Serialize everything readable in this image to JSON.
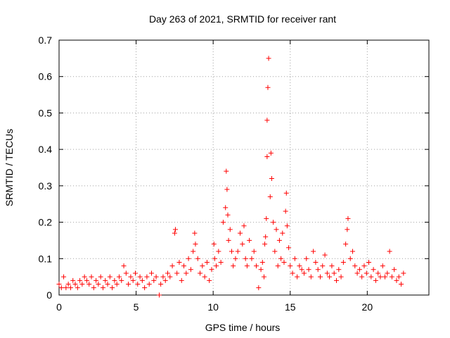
{
  "chart_data": {
    "type": "scatter",
    "title": "Day 263 of 2021, SRMTID for receiver rant",
    "xlabel": "GPS time / hours",
    "ylabel": "SRMTID / TECUs",
    "xlim": [
      0,
      24
    ],
    "ylim": [
      0,
      0.7
    ],
    "xticks": [
      0,
      5,
      10,
      15,
      20
    ],
    "xtick_labels": [
      "0",
      "5",
      "10",
      "15",
      "20"
    ],
    "yticks": [
      0,
      0.1,
      0.2,
      0.3,
      0.4,
      0.5,
      0.6,
      0.7
    ],
    "ytick_labels": [
      "0",
      "0.1",
      "0.2",
      "0.3",
      "0.4",
      "0.5",
      "0.6",
      "0.7"
    ],
    "grid": true,
    "marker": "+",
    "color": "#ff0000",
    "series": [
      {
        "name": "SRMTID",
        "x": [
          0.0,
          0.15,
          0.3,
          0.45,
          0.6,
          0.75,
          0.9,
          1.05,
          1.2,
          1.35,
          1.5,
          1.65,
          1.8,
          1.95,
          2.1,
          2.25,
          2.4,
          2.55,
          2.7,
          2.85,
          3.0,
          3.15,
          3.3,
          3.45,
          3.6,
          3.75,
          3.9,
          4.05,
          4.2,
          4.35,
          4.5,
          4.65,
          4.8,
          4.95,
          5.1,
          5.25,
          5.4,
          5.55,
          5.7,
          5.85,
          6.0,
          6.15,
          6.3,
          6.5,
          6.6,
          6.75,
          6.9,
          7.05,
          7.2,
          7.35,
          7.5,
          7.55,
          7.65,
          7.8,
          7.95,
          8.1,
          8.25,
          8.4,
          8.55,
          8.7,
          8.8,
          8.85,
          9.0,
          9.15,
          9.3,
          9.45,
          9.6,
          9.75,
          9.9,
          10.05,
          10.1,
          10.2,
          10.35,
          10.5,
          10.65,
          10.8,
          10.85,
          10.9,
          10.95,
          11.0,
          11.1,
          11.2,
          11.3,
          11.45,
          11.6,
          11.75,
          11.9,
          12.0,
          12.1,
          12.2,
          12.35,
          12.5,
          12.65,
          12.8,
          12.95,
          13.1,
          13.2,
          13.3,
          13.35,
          13.4,
          13.45,
          13.5,
          13.5,
          13.55,
          13.6,
          13.7,
          13.75,
          13.8,
          13.9,
          14.0,
          14.1,
          14.2,
          14.3,
          14.4,
          14.5,
          14.6,
          14.7,
          14.75,
          14.8,
          14.9,
          15.0,
          15.15,
          15.3,
          15.45,
          15.6,
          15.75,
          15.9,
          16.05,
          16.2,
          16.35,
          16.5,
          16.65,
          16.8,
          16.95,
          17.1,
          17.25,
          17.4,
          17.55,
          17.7,
          17.85,
          18.0,
          18.15,
          18.3,
          18.45,
          18.6,
          18.7,
          18.75,
          18.9,
          19.05,
          19.2,
          19.35,
          19.5,
          19.65,
          19.8,
          19.95,
          20.1,
          20.25,
          20.4,
          20.55,
          20.7,
          20.85,
          21.0,
          21.15,
          21.3,
          21.45,
          21.6,
          21.75,
          21.9,
          22.05,
          22.2,
          22.35
        ],
        "y": [
          0.03,
          0.02,
          0.05,
          0.02,
          0.03,
          0.02,
          0.04,
          0.03,
          0.02,
          0.04,
          0.03,
          0.05,
          0.04,
          0.03,
          0.05,
          0.02,
          0.04,
          0.03,
          0.05,
          0.02,
          0.04,
          0.03,
          0.05,
          0.02,
          0.04,
          0.03,
          0.05,
          0.04,
          0.08,
          0.06,
          0.03,
          0.05,
          0.04,
          0.06,
          0.03,
          0.05,
          0.04,
          0.02,
          0.05,
          0.03,
          0.06,
          0.04,
          0.05,
          0.0,
          0.03,
          0.05,
          0.04,
          0.06,
          0.05,
          0.08,
          0.17,
          0.18,
          0.06,
          0.09,
          0.04,
          0.08,
          0.06,
          0.1,
          0.07,
          0.12,
          0.17,
          0.14,
          0.1,
          0.06,
          0.08,
          0.05,
          0.09,
          0.04,
          0.07,
          0.14,
          0.1,
          0.08,
          0.12,
          0.09,
          0.2,
          0.24,
          0.34,
          0.29,
          0.22,
          0.15,
          0.18,
          0.12,
          0.08,
          0.1,
          0.12,
          0.17,
          0.14,
          0.19,
          0.1,
          0.08,
          0.15,
          0.1,
          0.12,
          0.08,
          0.02,
          0.07,
          0.09,
          0.05,
          0.14,
          0.16,
          0.21,
          0.38,
          0.48,
          0.57,
          0.65,
          0.27,
          0.39,
          0.32,
          0.2,
          0.12,
          0.18,
          0.08,
          0.15,
          0.1,
          0.17,
          0.09,
          0.23,
          0.28,
          0.19,
          0.13,
          0.08,
          0.06,
          0.1,
          0.05,
          0.08,
          0.07,
          0.06,
          0.1,
          0.07,
          0.05,
          0.12,
          0.09,
          0.07,
          0.05,
          0.08,
          0.11,
          0.06,
          0.05,
          0.08,
          0.06,
          0.04,
          0.07,
          0.05,
          0.09,
          0.14,
          0.18,
          0.21,
          0.1,
          0.12,
          0.08,
          0.06,
          0.07,
          0.05,
          0.08,
          0.06,
          0.09,
          0.05,
          0.07,
          0.04,
          0.06,
          0.05,
          0.08,
          0.05,
          0.06,
          0.12,
          0.05,
          0.07,
          0.04,
          0.05,
          0.03,
          0.06
        ]
      }
    ]
  }
}
